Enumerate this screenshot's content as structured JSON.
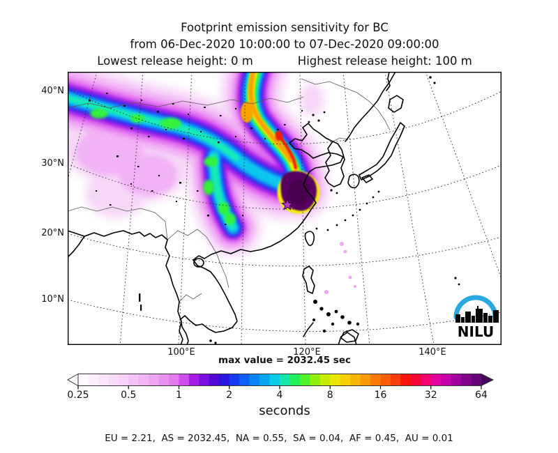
{
  "title": {
    "line1": "Footprint emission sensitivity for BC",
    "line2": "from 06-Dec-2020 10:00:00 to 07-Dec-2020 09:00:00",
    "line3_left": "Lowest release height: 0 m",
    "line3_right": "Highest release height: 100 m"
  },
  "map": {
    "y_axis_labels": [
      {
        "text": "40°N"
      },
      {
        "text": "30°N"
      },
      {
        "text": "20°N"
      },
      {
        "text": "10°N"
      }
    ],
    "x_axis_labels": [
      {
        "text": "100°E"
      },
      {
        "text": "120°E"
      },
      {
        "text": "140°E"
      }
    ],
    "max_value_label": "max value = 2032.45 sec",
    "logo_text": "NILU",
    "logo_arc_color": "#2aa9e0",
    "star_color": "#b836d6"
  },
  "colorbar": {
    "labels": [
      "0.25",
      "0.5",
      "1",
      "2",
      "4",
      "8",
      "16",
      "32",
      "64"
    ],
    "unit_label": "seconds",
    "segments": 40,
    "right_arrow_color": "#4a0060",
    "left_arrow_color": "#ffffff",
    "stops": [
      [
        0.0,
        "#ffffff"
      ],
      [
        0.04,
        "#feeefe"
      ],
      [
        0.08,
        "#fbdefb"
      ],
      [
        0.12,
        "#f8cdf8"
      ],
      [
        0.16,
        "#f3b5f4"
      ],
      [
        0.2,
        "#ec9df1"
      ],
      [
        0.24,
        "#e378ee"
      ],
      [
        0.265,
        "#cb49ea"
      ],
      [
        0.285,
        "#a81ee6"
      ],
      [
        0.3,
        "#9210e2"
      ],
      [
        0.32,
        "#7009dc"
      ],
      [
        0.335,
        "#5708d6"
      ],
      [
        0.35,
        "#3c10d8"
      ],
      [
        0.365,
        "#2818e2"
      ],
      [
        0.38,
        "#1930f0"
      ],
      [
        0.4,
        "#104ef8"
      ],
      [
        0.42,
        "#0c6cf6"
      ],
      [
        0.44,
        "#0788f2"
      ],
      [
        0.46,
        "#05a2ee"
      ],
      [
        0.475,
        "#06baec"
      ],
      [
        0.49,
        "#0bd0e4"
      ],
      [
        0.505,
        "#10e2c0"
      ],
      [
        0.52,
        "#16ec96"
      ],
      [
        0.535,
        "#1ef164"
      ],
      [
        0.55,
        "#30f23c"
      ],
      [
        0.565,
        "#55f226"
      ],
      [
        0.58,
        "#80f012"
      ],
      [
        0.6,
        "#aaee06"
      ],
      [
        0.62,
        "#d6ec04"
      ],
      [
        0.645,
        "#f4e204"
      ],
      [
        0.67,
        "#f8c805"
      ],
      [
        0.7,
        "#f8a806"
      ],
      [
        0.73,
        "#f88407"
      ],
      [
        0.76,
        "#f86008"
      ],
      [
        0.79,
        "#f83a08"
      ],
      [
        0.815,
        "#f81208"
      ],
      [
        0.84,
        "#f8063a"
      ],
      [
        0.865,
        "#f20474"
      ],
      [
        0.89,
        "#e002a0"
      ],
      [
        0.915,
        "#c201aa"
      ],
      [
        0.94,
        "#a0019e"
      ],
      [
        0.965,
        "#7c0288"
      ],
      [
        1.0,
        "#5c0272"
      ]
    ]
  },
  "footer": {
    "text": "EU = 2.21,  AS = 2032.45,  NA = 0.55,  SA = 0.04,  AF = 0.45,  AU = 0.01",
    "color": "#2222dd"
  },
  "chart_data": {
    "type": "heatmap",
    "subtype": "geographic-footprint-contour-map",
    "title": "Footprint emission sensitivity for BC",
    "subtitle": "from 06-Dec-2020 10:00:00 to 07-Dec-2020 09:00:00",
    "release_heights": {
      "lowest_m": 0,
      "highest_m": 100
    },
    "colorbar_unit": "seconds",
    "colorbar_ticks": [
      0.25,
      0.5,
      1,
      2,
      4,
      8,
      16,
      32,
      64
    ],
    "colorbar_scale": "log2",
    "max_value_sec": 2032.45,
    "region_totals": {
      "EU": 2.21,
      "AS": 2032.45,
      "NA": 0.55,
      "SA": 0.04,
      "AF": 0.45,
      "AU": 0.01
    },
    "lat_ticks": [
      "40°N",
      "30°N",
      "20°N",
      "10°N"
    ],
    "lon_ticks": [
      "100°E",
      "120°E",
      "140°E"
    ],
    "plume_description": "High sensitivity hotspot (dark purple, >64 s) over east-central China coast near 120E/26N marked with a star; rainbow plume band extends northwest across China to the map edge near 40N, with a secondary cyan-green branch descending toward 22N/110E.",
    "grid": "dotted graticule every 10 degrees"
  }
}
